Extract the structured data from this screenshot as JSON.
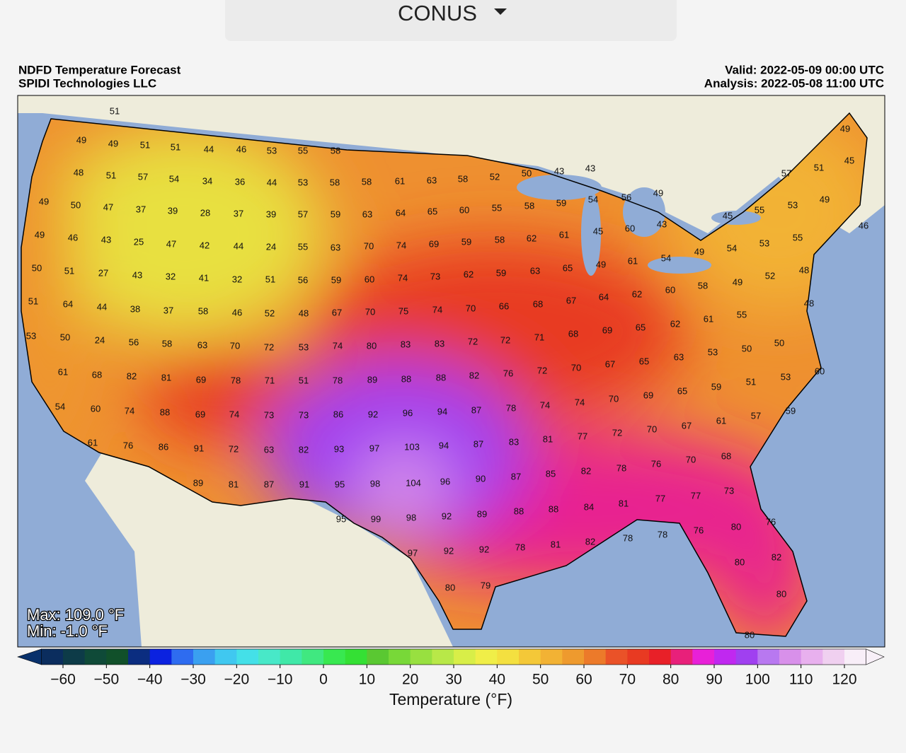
{
  "header": {
    "dropdown": "CONUS"
  },
  "map": {
    "title": "NDFD Temperature Forecast",
    "source": "SPIDI Technologies LLC",
    "valid": "Valid: 2022-05-09 00:00 UTC",
    "analysis": "Analysis: 2022-05-08 11:00 UTC",
    "max": "Max: 109.0 °F",
    "min": "Min: -1.0 °F",
    "stations": [
      51,
      49,
      49,
      51,
      51,
      44,
      46,
      53,
      55,
      58,
      48,
      51,
      57,
      54,
      34,
      36,
      44,
      53,
      58,
      58,
      61,
      63,
      58,
      52,
      50,
      43,
      43,
      57,
      51,
      49,
      45,
      49,
      50,
      47,
      37,
      39,
      28,
      37,
      39,
      57,
      59,
      63,
      64,
      65,
      60,
      55,
      58,
      59,
      54,
      56,
      49,
      55,
      53,
      49,
      45,
      46,
      49,
      46,
      43,
      25,
      47,
      42,
      44,
      24,
      55,
      63,
      70,
      74,
      69,
      59,
      58,
      62,
      61,
      45,
      60,
      43,
      54,
      53,
      55,
      50,
      51,
      27,
      43,
      32,
      41,
      32,
      51,
      56,
      59,
      60,
      74,
      73,
      62,
      59,
      63,
      65,
      49,
      61,
      54,
      49,
      52,
      48,
      49,
      58,
      51,
      64,
      44,
      38,
      37,
      58,
      46,
      52,
      48,
      67,
      70,
      75,
      74,
      70,
      66,
      68,
      67,
      64,
      62,
      60,
      55,
      48,
      53,
      50,
      24,
      56,
      58,
      63,
      70,
      72,
      53,
      74,
      80,
      83,
      83,
      72,
      72,
      71,
      68,
      69,
      65,
      62,
      61,
      50,
      50,
      61,
      68,
      82,
      81,
      69,
      78,
      71,
      51,
      78,
      89,
      88,
      88,
      82,
      76,
      72,
      70,
      67,
      65,
      63,
      53,
      59,
      51,
      53,
      60,
      54,
      60,
      74,
      88,
      69,
      74,
      73,
      73,
      86,
      92,
      96,
      94,
      87,
      78,
      74,
      74,
      70,
      69,
      65,
      67,
      61,
      57,
      59,
      61,
      76,
      86,
      91,
      72,
      63,
      82,
      93,
      97,
      103,
      94,
      87,
      83,
      81,
      77,
      72,
      70,
      76,
      70,
      68,
      89,
      81,
      87,
      91,
      95,
      98,
      104,
      96,
      90,
      87,
      85,
      82,
      78,
      77,
      77,
      73,
      88,
      88,
      84,
      81,
      95,
      99,
      98,
      92,
      89,
      78,
      78,
      76,
      80,
      76,
      97,
      92,
      92,
      78,
      81,
      82,
      80,
      82,
      80,
      79,
      80,
      80
    ]
  },
  "colorbar": {
    "label": "Temperature (°F)",
    "range": [
      -65,
      125
    ],
    "ticks": [
      {
        "value": -60,
        "label": "−60"
      },
      {
        "value": -50,
        "label": "−50"
      },
      {
        "value": -40,
        "label": "−40"
      },
      {
        "value": -30,
        "label": "−30"
      },
      {
        "value": -20,
        "label": "−20"
      },
      {
        "value": -10,
        "label": "−10"
      },
      0,
      10,
      20,
      30,
      40,
      50,
      60,
      70,
      80,
      90,
      100,
      110,
      120
    ],
    "colors": [
      "#0b2d5e",
      "#0d3b48",
      "#0f4a38",
      "#11502a",
      "#0b2d80",
      "#0b22e0",
      "#2e6cf0",
      "#3aa0f0",
      "#40c8f0",
      "#44e0e8",
      "#48e8c8",
      "#40e8a8",
      "#40e880",
      "#38e850",
      "#34e034",
      "#5ac832",
      "#78d838",
      "#98e040",
      "#b8e848",
      "#d8ee48",
      "#f0ee48",
      "#f4e040",
      "#f4c838",
      "#f2b234",
      "#ee9a2e",
      "#ec7a2a",
      "#ea5228",
      "#e83a22",
      "#e82028",
      "#e8207a",
      "#e820d8",
      "#c028f0",
      "#a040f0",
      "#b878f0",
      "#d890ea",
      "#e8b0ee",
      "#f0d0f0",
      "#f8eef8"
    ],
    "under": "#08306b",
    "over": "#f8f0f8"
  }
}
